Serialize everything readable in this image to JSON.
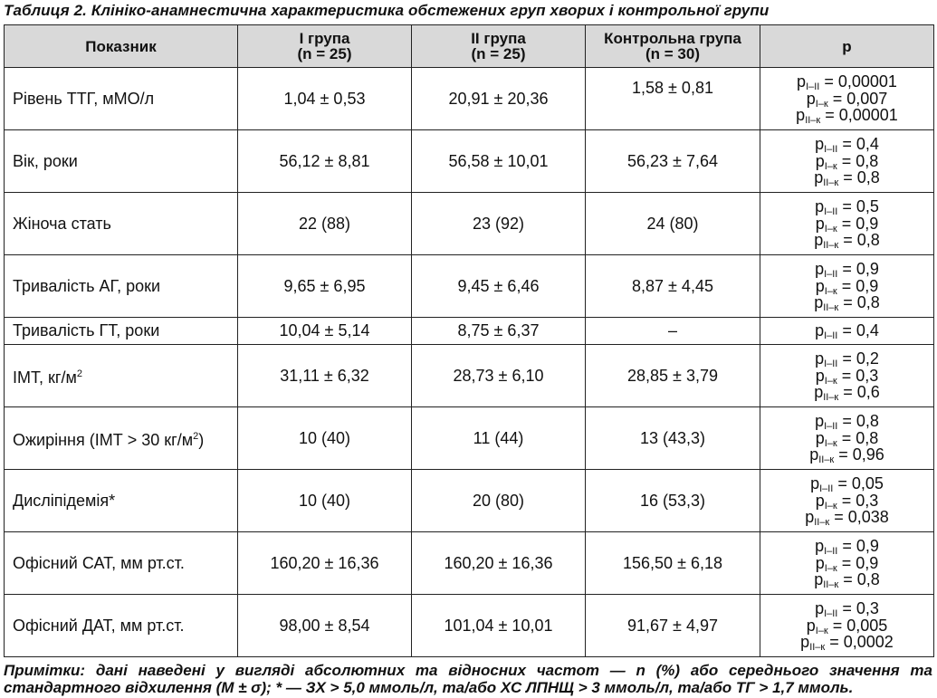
{
  "caption": "Таблиця 2. Клініко-анамнестична характеристика обстежених груп хворих і контрольної групи",
  "header": {
    "indicator": "Показник",
    "g1_line1": "І група",
    "g1_line2": "(n = 25)",
    "g2_line1": "ІІ група",
    "g2_line2": "(n = 25)",
    "ctrl_line1": "Контрольна група",
    "ctrl_line2": "(n = 30)",
    "p": "p"
  },
  "rows": [
    {
      "label": "Рівень ТТГ, мМО/л",
      "g1": "1,04 ± 0,53",
      "g2": "20,91 ± 20,36",
      "ctrl": "1,58 ± 0,81",
      "p": [
        {
          "sym": "p",
          "sub": "І–ІІ",
          "val": " = 0,00001"
        },
        {
          "sym": "p",
          "sub": "І–к",
          "val": " = 0,007"
        },
        {
          "sym": "p",
          "sub": "ІІ–к",
          "val": " = 0,00001"
        }
      ]
    },
    {
      "label": "Вік, роки",
      "g1": "56,12 ± 8,81",
      "g2": "56,58 ± 10,01",
      "ctrl": "56,23 ± 7,64",
      "p": [
        {
          "sym": "p",
          "sub": "І–ІІ",
          "val": " = 0,4"
        },
        {
          "sym": "p",
          "sub": "І–к",
          "val": " = 0,8"
        },
        {
          "sym": "p",
          "sub": "ІІ–к",
          "val": " = 0,8"
        }
      ]
    },
    {
      "label": "Жіноча стать",
      "g1": "22 (88)",
      "g2": "23 (92)",
      "ctrl": "24 (80)",
      "p": [
        {
          "sym": "p",
          "sub": "І–ІІ",
          "val": " = 0,5"
        },
        {
          "sym": "p",
          "sub": "І–к",
          "val": " = 0,9"
        },
        {
          "sym": "p",
          "sub": "ІІ–к",
          "val": " = 0,8"
        }
      ]
    },
    {
      "label": "Тривалість АГ, роки",
      "g1": "9,65 ± 6,95",
      "g2": "9,45 ± 6,46",
      "ctrl": "8,87 ± 4,45",
      "p": [
        {
          "sym": "p",
          "sub": "І–ІІ",
          "val": " = 0,9"
        },
        {
          "sym": "p",
          "sub": "І–к",
          "val": " = 0,9"
        },
        {
          "sym": "p",
          "sub": "ІІ–к",
          "val": " = 0,8"
        }
      ]
    },
    {
      "label": "Тривалість ГТ, роки",
      "g1": "10,04 ± 5,14",
      "g2": "8,75 ± 6,37",
      "ctrl": "–",
      "p": [
        {
          "sym": "p",
          "sub": "І–ІІ",
          "val": " = 0,4"
        }
      ]
    },
    {
      "label": "ІМТ, кг/м",
      "label_sup": "2",
      "g1": "31,11 ± 6,32",
      "g2": "28,73 ± 6,10",
      "ctrl": "28,85 ± 3,79",
      "p": [
        {
          "sym": "p",
          "sub": "І–ІІ",
          "val": " = 0,2"
        },
        {
          "sym": "p",
          "sub": "І–к",
          "val": " = 0,3"
        },
        {
          "sym": "p",
          "sub": "ІІ–к",
          "val": " = 0,6"
        }
      ]
    },
    {
      "label": "Ожиріння (ІМТ > 30 кг/м",
      "label_sup": "2",
      "label_tail": ")",
      "g1": "10 (40)",
      "g2": "11 (44)",
      "ctrl": "13 (43,3)",
      "p": [
        {
          "sym": "p",
          "sub": "І–ІІ",
          "val": " = 0,8"
        },
        {
          "sym": "p",
          "sub": "І–к",
          "val": " = 0,8"
        },
        {
          "sym": "p",
          "sub": "ІІ–к",
          "val": " = 0,96"
        }
      ]
    },
    {
      "label": "Дисліпідемія*",
      "g1": "10 (40)",
      "g2": "20 (80)",
      "ctrl": "16 (53,3)",
      "p": [
        {
          "sym": "p",
          "sub": "І–ІІ",
          "val": " = 0,05"
        },
        {
          "sym": "p",
          "sub": "І–к",
          "val": " = 0,3"
        },
        {
          "sym": "p",
          "sub": "ІІ–к",
          "val": " = 0,038"
        }
      ]
    },
    {
      "label": "Офісний САТ, мм рт.ст.",
      "g1": "160,20 ± 16,36",
      "g2": "160,20 ± 16,36",
      "ctrl": "156,50 ± 6,18",
      "p": [
        {
          "sym": "p",
          "sub": "І–ІІ",
          "val": " = 0,9"
        },
        {
          "sym": "p",
          "sub": "І–к",
          "val": " = 0,9"
        },
        {
          "sym": "p",
          "sub": "ІІ–к",
          "val": " = 0,8"
        }
      ]
    },
    {
      "label": "Офісний ДАТ, мм рт.ст.",
      "g1": "98,00 ± 8,54",
      "g2": "101,04 ± 10,01",
      "ctrl": "91,67 ± 4,97",
      "p": [
        {
          "sym": "p",
          "sub": "І–ІІ",
          "val": " = 0,3"
        },
        {
          "sym": "p",
          "sub": "І–к",
          "val": " = 0,005"
        },
        {
          "sym": "p",
          "sub": "ІІ–к",
          "val": " = 0,0002"
        }
      ]
    }
  ],
  "notes": {
    "line1": "Примітки: дані наведені у вигляді абсолютних та відносних частот — n (%) або середнього значення та",
    "line2": "стандартного відхилення (M ± σ); * — ЗХ > 5,0 ммоль/л, та/або ХС ЛПНЩ > 3 ммоль/л, та/або ТГ > 1,7 ммоль."
  }
}
